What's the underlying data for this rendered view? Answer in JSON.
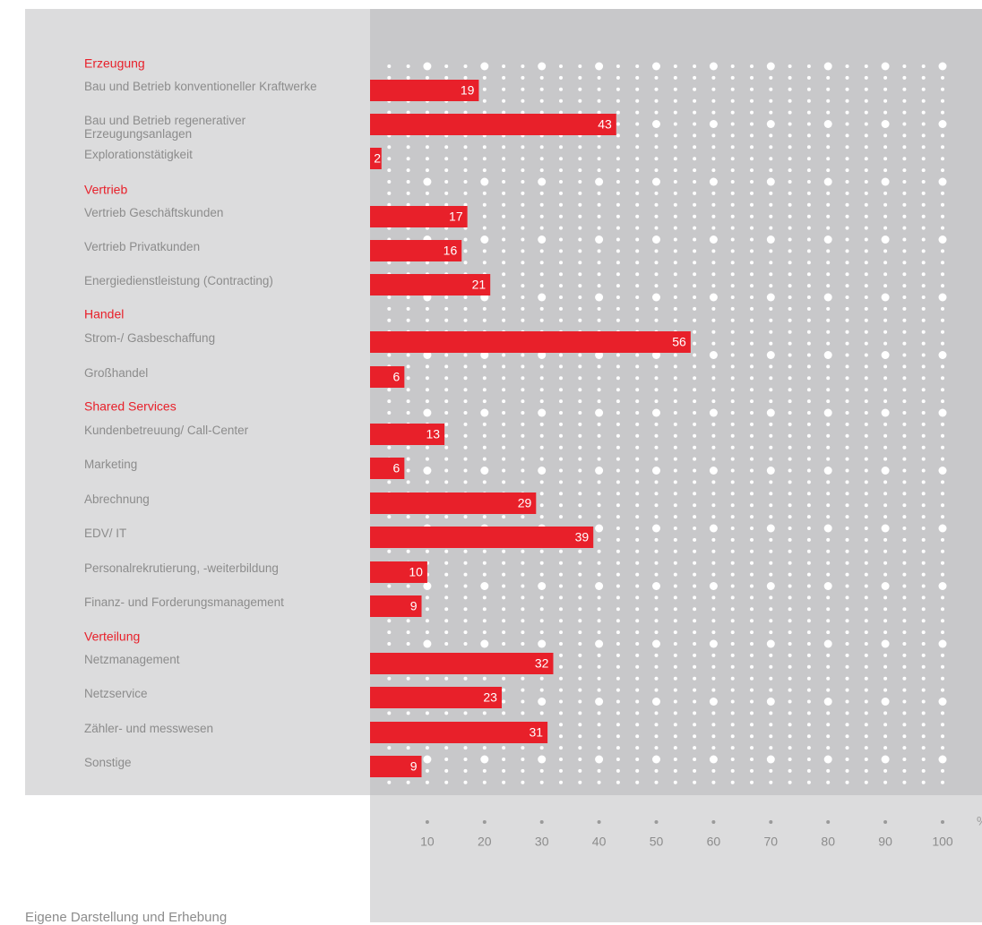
{
  "chart_data": {
    "type": "bar",
    "orientation": "horizontal",
    "color": "#e8202a",
    "groups": [
      {
        "name": "Erzeugung",
        "categories": [
          "Bau und Betrieb konventioneller Kraftwerke",
          "Bau und Betrieb regenerativer Erzeugungsanlagen",
          "Explorationstätigkeit"
        ],
        "values": [
          19,
          43,
          2
        ]
      },
      {
        "name": "Vertrieb",
        "categories": [
          "Vertrieb Geschäftskunden",
          "Vertrieb Privatkunden",
          "Energiedienstleistung (Contracting)"
        ],
        "values": [
          17,
          16,
          21
        ]
      },
      {
        "name": "Handel",
        "categories": [
          "Strom-/ Gasbeschaffung",
          "Großhandel"
        ],
        "values": [
          56,
          6
        ]
      },
      {
        "name": "Shared Services",
        "categories": [
          "Kundenbetreuung/ Call-Center",
          "Marketing",
          "Abrechnung",
          "EDV/ IT",
          "Personalrekrutierung, -weiterbildung",
          "Finanz- und Forderungsmanagement"
        ],
        "values": [
          13,
          6,
          29,
          39,
          10,
          9
        ]
      },
      {
        "name": "Verteilung",
        "categories": [
          "Netzmanagement",
          "Netzservice",
          "Zähler- und messwesen",
          "Sonstige"
        ],
        "values": [
          32,
          23,
          31,
          9
        ]
      }
    ],
    "xlim": [
      0,
      100
    ],
    "xticks": [
      10,
      20,
      30,
      40,
      50,
      60,
      70,
      80,
      90,
      100
    ],
    "x_unit": "%",
    "source": "Eigene Darstellung und Erhebung"
  }
}
